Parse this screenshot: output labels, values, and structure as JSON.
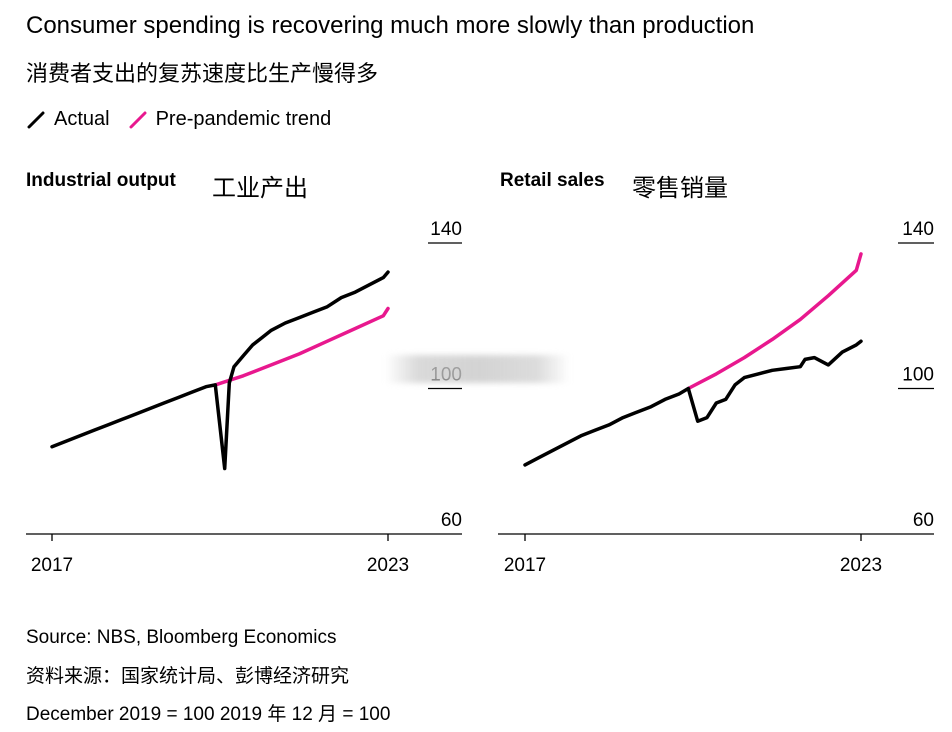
{
  "header": {
    "title": "Consumer spending is recovering much more slowly than production",
    "subtitle_cn": "消费者支出的复苏速度比生产慢得多"
  },
  "legend": {
    "actual_label": "Actual",
    "trend_label": "Pre-pandemic trend"
  },
  "colors": {
    "actual": "#000000",
    "trend": "#e8188e",
    "axis": "#000000"
  },
  "footer": {
    "source": "Source: NBS, Bloomberg Economics",
    "source_cn": "资料来源：国家统计局、彭博经济研究",
    "note": "December 2019 = 100 2019 年 12 月 = 100"
  },
  "chart_data": [
    {
      "type": "line",
      "title": "Industrial output",
      "title_cn": "工业产出",
      "x_ticks": [
        "2017",
        "2023"
      ],
      "y_ticks": [
        60,
        100,
        140
      ],
      "ylim": [
        60,
        140
      ],
      "x_range": [
        "2017-01",
        "2023-01"
      ],
      "y_axis_side": "right",
      "series": [
        {
          "name": "Actual",
          "x": [
            "2017-01",
            "2017-04",
            "2017-07",
            "2017-10",
            "2018-01",
            "2018-04",
            "2018-07",
            "2018-10",
            "2019-01",
            "2019-04",
            "2019-07",
            "2019-10",
            "2019-12",
            "2020-02",
            "2020-03",
            "2020-04",
            "2020-06",
            "2020-08",
            "2020-10",
            "2020-12",
            "2021-03",
            "2021-06",
            "2021-09",
            "2021-12",
            "2022-03",
            "2022-06",
            "2022-09",
            "2022-12",
            "2023-01"
          ],
          "y": [
            84,
            85.5,
            87,
            88.5,
            90,
            91.5,
            93,
            94.5,
            96,
            97.5,
            99,
            100.5,
            101,
            78,
            101.5,
            106,
            109,
            112,
            114,
            116,
            118,
            119.5,
            121,
            122.5,
            125,
            126.5,
            128.5,
            130.5,
            132
          ]
        },
        {
          "name": "Pre-pandemic trend",
          "x": [
            "2019-12",
            "2020-06",
            "2020-12",
            "2021-06",
            "2021-12",
            "2022-06",
            "2022-12",
            "2023-01"
          ],
          "y": [
            101,
            103.5,
            106.5,
            109.5,
            113,
            116.5,
            120,
            122
          ]
        }
      ]
    },
    {
      "type": "line",
      "title": "Retail sales",
      "title_cn": "零售销量",
      "x_ticks": [
        "2017",
        "2023"
      ],
      "y_ticks": [
        60,
        100,
        140
      ],
      "ylim": [
        60,
        140
      ],
      "x_range": [
        "2017-01",
        "2023-01"
      ],
      "y_axis_side": "right",
      "series": [
        {
          "name": "Actual",
          "x": [
            "2017-01",
            "2017-04",
            "2017-07",
            "2017-10",
            "2018-01",
            "2018-04",
            "2018-07",
            "2018-10",
            "2019-01",
            "2019-04",
            "2019-07",
            "2019-10",
            "2019-12",
            "2020-02",
            "2020-04",
            "2020-06",
            "2020-08",
            "2020-10",
            "2020-12",
            "2021-03",
            "2021-06",
            "2021-09",
            "2021-12",
            "2022-01",
            "2022-03",
            "2022-06",
            "2022-09",
            "2022-12",
            "2023-01"
          ],
          "y": [
            79,
            81,
            83,
            85,
            87,
            88.5,
            90,
            92,
            93.5,
            95,
            97,
            98.5,
            100,
            91,
            92,
            96,
            97,
            101,
            103,
            104,
            105,
            105.5,
            106,
            108,
            108.5,
            106.5,
            110,
            112,
            113
          ]
        },
        {
          "name": "Pre-pandemic trend",
          "x": [
            "2019-12",
            "2020-06",
            "2020-12",
            "2021-06",
            "2021-12",
            "2022-06",
            "2022-12",
            "2023-01"
          ],
          "y": [
            100,
            104,
            108.5,
            113.5,
            119,
            125.5,
            132.5,
            137
          ]
        }
      ]
    }
  ]
}
